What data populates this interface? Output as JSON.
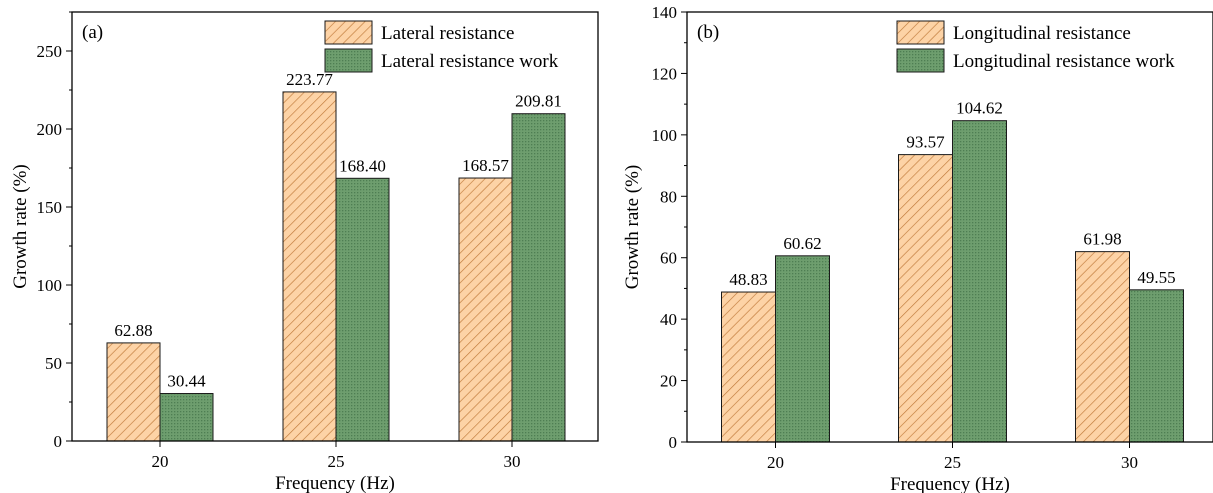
{
  "chart_data": [
    {
      "type": "bar",
      "panel_label": "(a)",
      "xlabel": "Frequency (Hz)",
      "ylabel": "Growth rate (%)",
      "categories": [
        "20",
        "25",
        "30"
      ],
      "ylim": [
        0,
        275
      ],
      "yticks": [
        0,
        50,
        100,
        150,
        200,
        250
      ],
      "grid": false,
      "legend_position": "top-right",
      "series": [
        {
          "name": "Lateral resistance",
          "values": [
            62.88,
            223.77,
            168.57
          ],
          "labels": [
            "62.88",
            "223.77",
            "168.57"
          ],
          "color": "#FDD3A6",
          "pattern": "diagonal-hatch"
        },
        {
          "name": "Lateral resistance work",
          "values": [
            30.44,
            168.4,
            209.81
          ],
          "labels": [
            "30.44",
            "168.40",
            "209.81"
          ],
          "color": "#6E9E6E",
          "pattern": "dotted"
        }
      ]
    },
    {
      "type": "bar",
      "panel_label": "(b)",
      "xlabel": "Frequency (Hz)",
      "ylabel": "Growth rate (%)",
      "categories": [
        "20",
        "25",
        "30"
      ],
      "ylim": [
        0,
        140
      ],
      "yticks": [
        0,
        20,
        40,
        60,
        80,
        100,
        120,
        140
      ],
      "grid": false,
      "legend_position": "top-right",
      "series": [
        {
          "name": "Longitudinal resistance",
          "values": [
            48.83,
            93.57,
            61.98
          ],
          "labels": [
            "48.83",
            "93.57",
            "61.98"
          ],
          "color": "#FDD3A6",
          "pattern": "diagonal-hatch"
        },
        {
          "name": "Longitudinal resistance work",
          "values": [
            60.62,
            104.62,
            49.55
          ],
          "labels": [
            "60.62",
            "104.62",
            "49.55"
          ],
          "color": "#6E9E6E",
          "pattern": "dotted"
        }
      ]
    }
  ]
}
